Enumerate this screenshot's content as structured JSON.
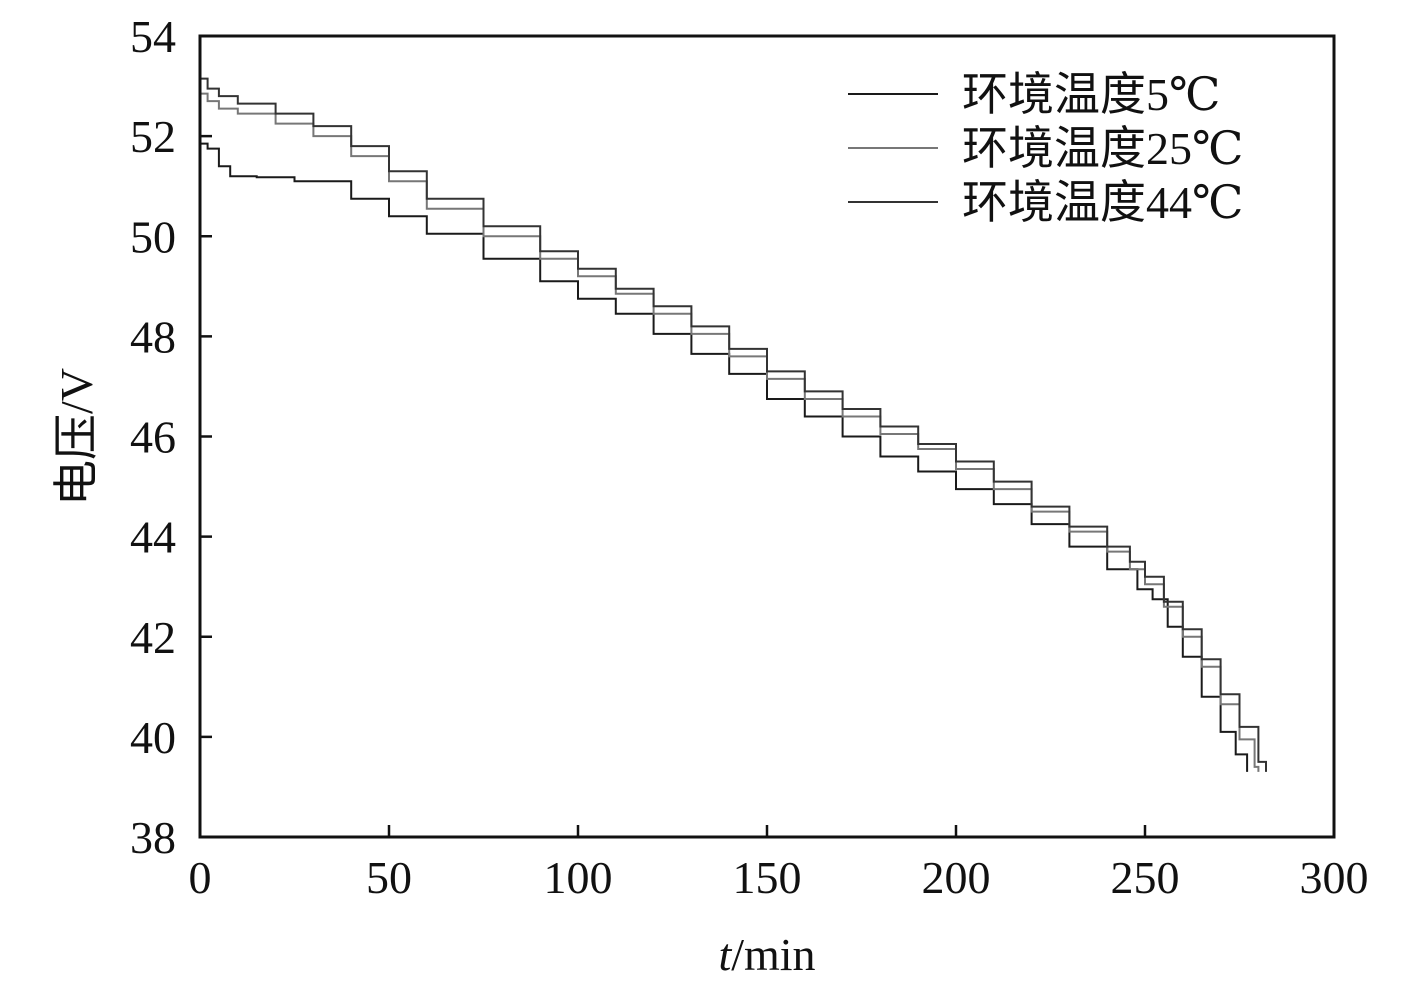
{
  "chart_data": {
    "type": "line",
    "title": "",
    "xlabel_italic": "t",
    "xlabel_rest": "/min",
    "ylabel": "电压/V",
    "xlim": [
      0,
      300
    ],
    "ylim": [
      38,
      54
    ],
    "xticks": [
      0,
      50,
      100,
      150,
      200,
      250,
      300
    ],
    "yticks": [
      38,
      40,
      42,
      44,
      46,
      48,
      50,
      52,
      54
    ],
    "grid": false,
    "legend_position": "top-right",
    "series": [
      {
        "name": "环境温度5℃",
        "color": "#1a1a1a",
        "points": [
          [
            0,
            51.85
          ],
          [
            2,
            51.75
          ],
          [
            5,
            51.4
          ],
          [
            8,
            51.2
          ],
          [
            15,
            51.18
          ],
          [
            25,
            51.1
          ],
          [
            40,
            50.75
          ],
          [
            50,
            50.4
          ],
          [
            60,
            50.05
          ],
          [
            75,
            49.55
          ],
          [
            90,
            49.1
          ],
          [
            100,
            48.75
          ],
          [
            110,
            48.45
          ],
          [
            120,
            48.05
          ],
          [
            130,
            47.65
          ],
          [
            140,
            47.25
          ],
          [
            150,
            46.75
          ],
          [
            160,
            46.4
          ],
          [
            170,
            46.0
          ],
          [
            180,
            45.6
          ],
          [
            190,
            45.3
          ],
          [
            200,
            44.95
          ],
          [
            210,
            44.65
          ],
          [
            220,
            44.25
          ],
          [
            230,
            43.8
          ],
          [
            240,
            43.35
          ],
          [
            248,
            42.95
          ],
          [
            252,
            42.75
          ],
          [
            256,
            42.2
          ],
          [
            260,
            41.6
          ],
          [
            265,
            40.8
          ],
          [
            270,
            40.1
          ],
          [
            274,
            39.65
          ],
          [
            277,
            39.3
          ]
        ]
      },
      {
        "name": "环境温度25℃",
        "color": "#777777",
        "points": [
          [
            0,
            52.85
          ],
          [
            2,
            52.7
          ],
          [
            5,
            52.55
          ],
          [
            10,
            52.45
          ],
          [
            20,
            52.25
          ],
          [
            30,
            52.0
          ],
          [
            40,
            51.6
          ],
          [
            50,
            51.1
          ],
          [
            60,
            50.55
          ],
          [
            75,
            50.0
          ],
          [
            90,
            49.55
          ],
          [
            100,
            49.2
          ],
          [
            110,
            48.85
          ],
          [
            120,
            48.45
          ],
          [
            130,
            48.05
          ],
          [
            140,
            47.6
          ],
          [
            150,
            47.15
          ],
          [
            160,
            46.75
          ],
          [
            170,
            46.4
          ],
          [
            180,
            46.05
          ],
          [
            190,
            45.75
          ],
          [
            200,
            45.35
          ],
          [
            210,
            44.95
          ],
          [
            220,
            44.5
          ],
          [
            230,
            44.1
          ],
          [
            240,
            43.7
          ],
          [
            246,
            43.35
          ],
          [
            250,
            43.05
          ],
          [
            255,
            42.6
          ],
          [
            260,
            42.0
          ],
          [
            265,
            41.4
          ],
          [
            270,
            40.65
          ],
          [
            275,
            39.95
          ],
          [
            279,
            39.4
          ],
          [
            280,
            39.3
          ]
        ]
      },
      {
        "name": "环境温度44℃",
        "color": "#333333",
        "points": [
          [
            0,
            53.15
          ],
          [
            2,
            52.95
          ],
          [
            5,
            52.8
          ],
          [
            10,
            52.65
          ],
          [
            20,
            52.45
          ],
          [
            30,
            52.2
          ],
          [
            40,
            51.8
          ],
          [
            50,
            51.3
          ],
          [
            60,
            50.75
          ],
          [
            75,
            50.2
          ],
          [
            90,
            49.7
          ],
          [
            100,
            49.35
          ],
          [
            110,
            48.95
          ],
          [
            120,
            48.6
          ],
          [
            130,
            48.2
          ],
          [
            140,
            47.75
          ],
          [
            150,
            47.3
          ],
          [
            160,
            46.9
          ],
          [
            170,
            46.55
          ],
          [
            180,
            46.2
          ],
          [
            190,
            45.85
          ],
          [
            200,
            45.5
          ],
          [
            210,
            45.1
          ],
          [
            220,
            44.6
          ],
          [
            230,
            44.2
          ],
          [
            240,
            43.8
          ],
          [
            246,
            43.5
          ],
          [
            250,
            43.2
          ],
          [
            255,
            42.7
          ],
          [
            260,
            42.15
          ],
          [
            265,
            41.55
          ],
          [
            270,
            40.85
          ],
          [
            275,
            40.2
          ],
          [
            280,
            39.5
          ],
          [
            282,
            39.3
          ]
        ]
      }
    ]
  }
}
